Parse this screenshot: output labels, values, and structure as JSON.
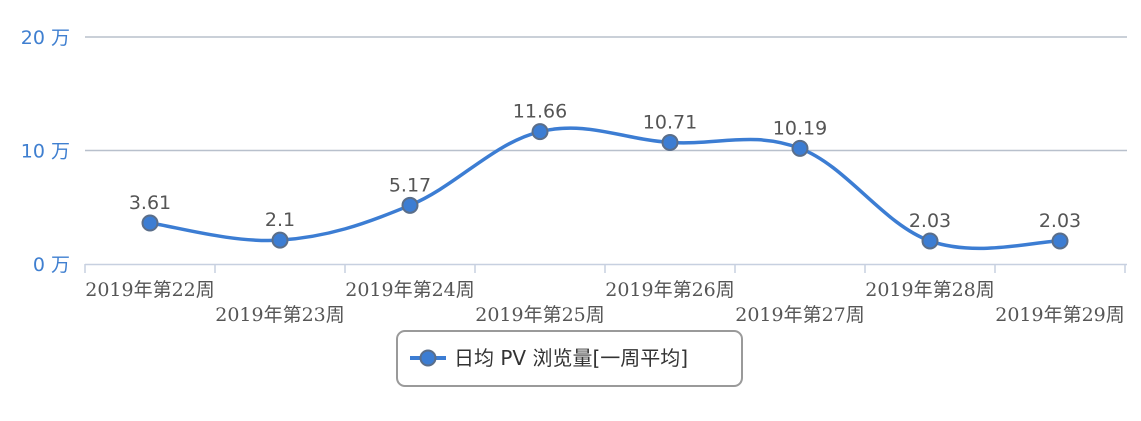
{
  "chart_data": {
    "type": "line",
    "categories": [
      "2019年第22周",
      "2019年第23周",
      "2019年第24周",
      "2019年第25周",
      "2019年第26周",
      "2019年第27周",
      "2019年第28周",
      "2019年第29周"
    ],
    "series": [
      {
        "name": "日均 PV 浏览量[一周平均]",
        "values": [
          3.61,
          2.1,
          5.17,
          11.66,
          10.71,
          10.19,
          2.03,
          2.03
        ],
        "color": "#3c7dd3"
      }
    ],
    "ylim": [
      0,
      20
    ],
    "yticks": [
      0,
      10,
      20
    ],
    "ytick_labels": [
      "0 万",
      "10 万",
      "20 万"
    ],
    "data_labels": [
      "3.61",
      "2.1",
      "5.17",
      "11.66",
      "10.71",
      "10.19",
      "2.03",
      "2.03"
    ],
    "grid": true,
    "legend": "bottom-center",
    "colors": {
      "line": "#3c7dd3",
      "marker_stroke": "#5a6e8a",
      "ytick": "#3f7fd0",
      "grid": "#b8c0cc"
    }
  }
}
